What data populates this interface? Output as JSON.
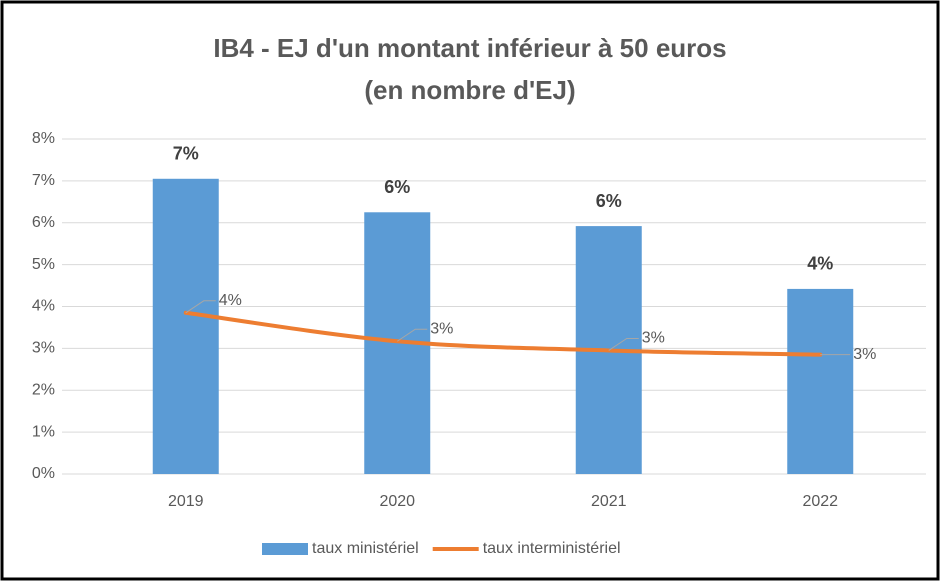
{
  "chart_data": {
    "type": "bar-line",
    "title": [
      "IB4 - EJ d'un montant inférieur à 50 euros",
      "(en nombre d'EJ)"
    ],
    "categories": [
      "2019",
      "2020",
      "2021",
      "2022"
    ],
    "series": [
      {
        "name": "taux ministériel",
        "type": "bar",
        "color": "#5b9bd5",
        "values": [
          7.05,
          6.25,
          5.92,
          4.42
        ],
        "value_labels": [
          "7%",
          "6%",
          "6%",
          "4%"
        ]
      },
      {
        "name": "taux interministériel",
        "type": "line",
        "color": "#ed7d31",
        "values": [
          3.85,
          3.17,
          2.95,
          2.85
        ],
        "value_labels": [
          "4%",
          "3%",
          "3%",
          "3%"
        ]
      }
    ],
    "ylim": [
      0,
      8
    ],
    "yticks": [
      {
        "value": 0,
        "label": "0%"
      },
      {
        "value": 1,
        "label": "1%"
      },
      {
        "value": 2,
        "label": "2%"
      },
      {
        "value": 3,
        "label": "3%"
      },
      {
        "value": 4,
        "label": "4%"
      },
      {
        "value": 5,
        "label": "5%"
      },
      {
        "value": 6,
        "label": "6%"
      },
      {
        "value": 7,
        "label": "7%"
      },
      {
        "value": 8,
        "label": "8%"
      }
    ],
    "grid": true,
    "legend": "bottom"
  }
}
